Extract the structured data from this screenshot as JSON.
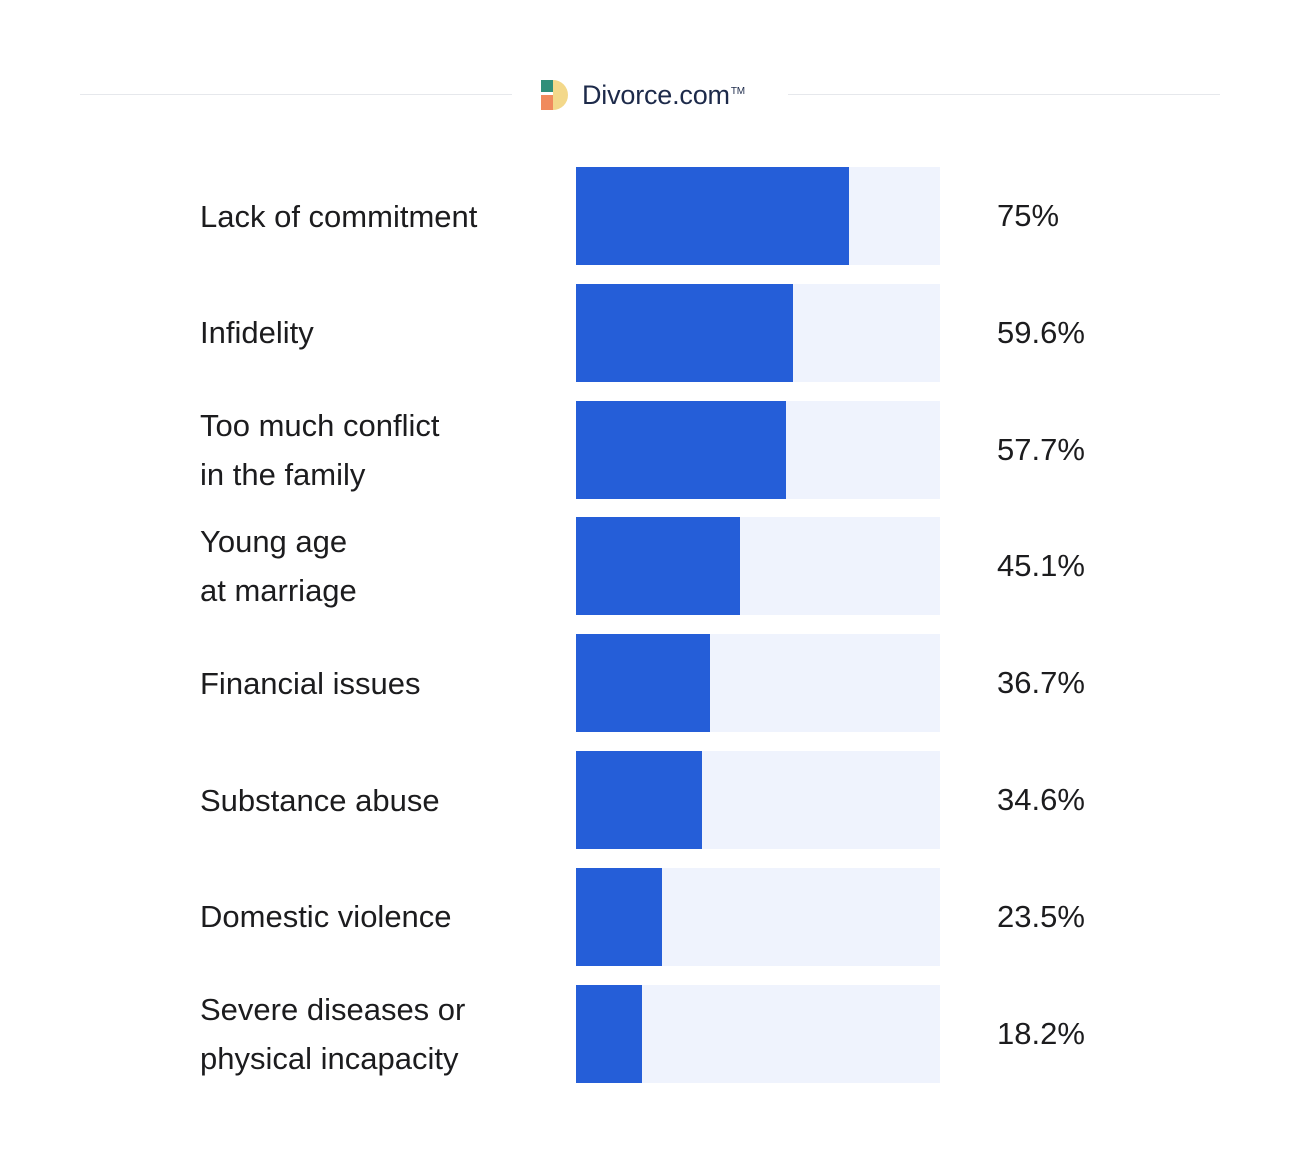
{
  "brand": {
    "name": "Divorce.com",
    "trademark": "TM",
    "logo_colors": [
      "#2f8f7a",
      "#f3d88a",
      "#f08a5d"
    ]
  },
  "colors": {
    "bar_fill": "#255ed8",
    "bar_track": "#eff3fd"
  },
  "chart_data": {
    "type": "bar",
    "orientation": "horizontal",
    "title": "",
    "xlabel": "",
    "ylabel": "",
    "xlim": [
      0,
      100
    ],
    "grid": false,
    "categories": [
      "Lack of commitment",
      "Infidelity",
      "Too much conflict\nin the family",
      "Young age\nat marriage",
      "Financial issues",
      "Substance abuse",
      "Domestic violence",
      "Severe diseases or\nphysical incapacity"
    ],
    "values": [
      75,
      59.6,
      57.7,
      45.1,
      36.7,
      34.6,
      23.5,
      18.2
    ],
    "value_labels": [
      "75%",
      "59.6%",
      "57.7%",
      "45.1%",
      "36.7%",
      "34.6%",
      "23.5%",
      "18.2%"
    ]
  }
}
